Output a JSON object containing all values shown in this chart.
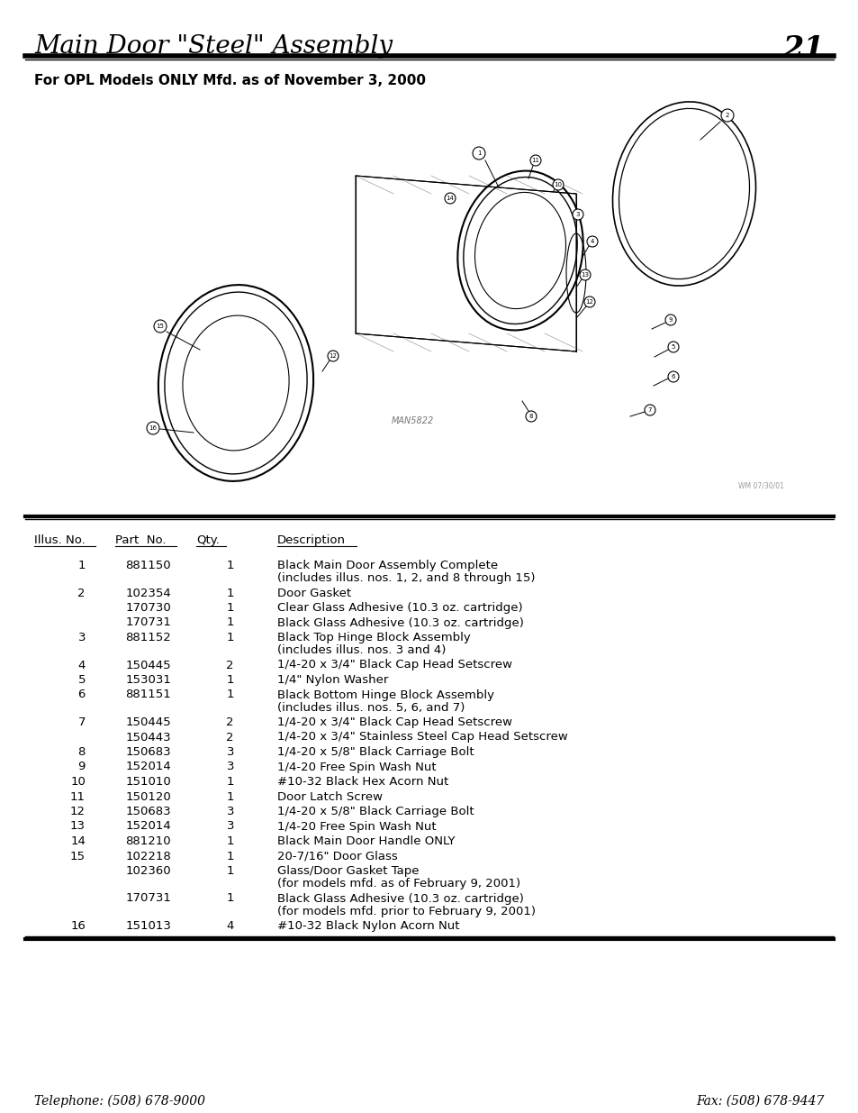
{
  "title": "Main Door \"Steel\" Assembly",
  "page_number": "21",
  "subtitle": "For OPL Models ONLY Mfd. as of November 3, 2000",
  "diagram_label": "MAN5822",
  "diagram_watermark": "WM 07/30/01",
  "table_headers": [
    "Illus. No.",
    "Part  No.",
    "Qty.",
    "Description"
  ],
  "table_rows": [
    [
      "1",
      "881150",
      "1",
      "Black Main Door Assembly Complete\n(includes illus. nos. 1, 2, and 8 through 15)"
    ],
    [
      "2",
      "102354",
      "1",
      "Door Gasket"
    ],
    [
      "",
      "170730",
      "1",
      "Clear Glass Adhesive (10.3 oz. cartridge)"
    ],
    [
      "",
      "170731",
      "1",
      "Black Glass Adhesive (10.3 oz. cartridge)"
    ],
    [
      "3",
      "881152",
      "1",
      "Black Top Hinge Block Assembly\n(includes illus. nos. 3 and 4)"
    ],
    [
      "4",
      "150445",
      "2",
      "1/4-20 x 3/4\" Black Cap Head Setscrew"
    ],
    [
      "5",
      "153031",
      "1",
      "1/4\" Nylon Washer"
    ],
    [
      "6",
      "881151",
      "1",
      "Black Bottom Hinge Block Assembly\n(includes illus. nos. 5, 6, and 7)"
    ],
    [
      "7",
      "150445",
      "2",
      "1/4-20 x 3/4\" Black Cap Head Setscrew"
    ],
    [
      "",
      "150443",
      "2",
      "1/4-20 x 3/4\" Stainless Steel Cap Head Setscrew"
    ],
    [
      "8",
      "150683",
      "3",
      "1/4-20 x 5/8\" Black Carriage Bolt"
    ],
    [
      "9",
      "152014",
      "3",
      "1/4-20 Free Spin Wash Nut"
    ],
    [
      "10",
      "151010",
      "1",
      "#10-32 Black Hex Acorn Nut"
    ],
    [
      "11",
      "150120",
      "1",
      "Door Latch Screw"
    ],
    [
      "12",
      "150683",
      "3",
      "1/4-20 x 5/8\" Black Carriage Bolt"
    ],
    [
      "13",
      "152014",
      "3",
      "1/4-20 Free Spin Wash Nut"
    ],
    [
      "14",
      "881210",
      "1",
      "Black Main Door Handle ONLY"
    ],
    [
      "15",
      "102218",
      "1",
      "20-7/16\" Door Glass"
    ],
    [
      "",
      "102360",
      "1",
      "Glass/Door Gasket Tape\n(for models mfd. as of February 9, 2001)"
    ],
    [
      "",
      "170731",
      "1",
      "Black Glass Adhesive (10.3 oz. cartridge)\n(for models mfd. prior to February 9, 2001)"
    ],
    [
      "16",
      "151013",
      "4",
      "#10-32 Black Nylon Acorn Nut"
    ]
  ],
  "footer_left": "Telephone: (508) 678-9000",
  "footer_right": "Fax: (508) 678-9447",
  "bg_color": "#ffffff",
  "text_color": "#000000"
}
